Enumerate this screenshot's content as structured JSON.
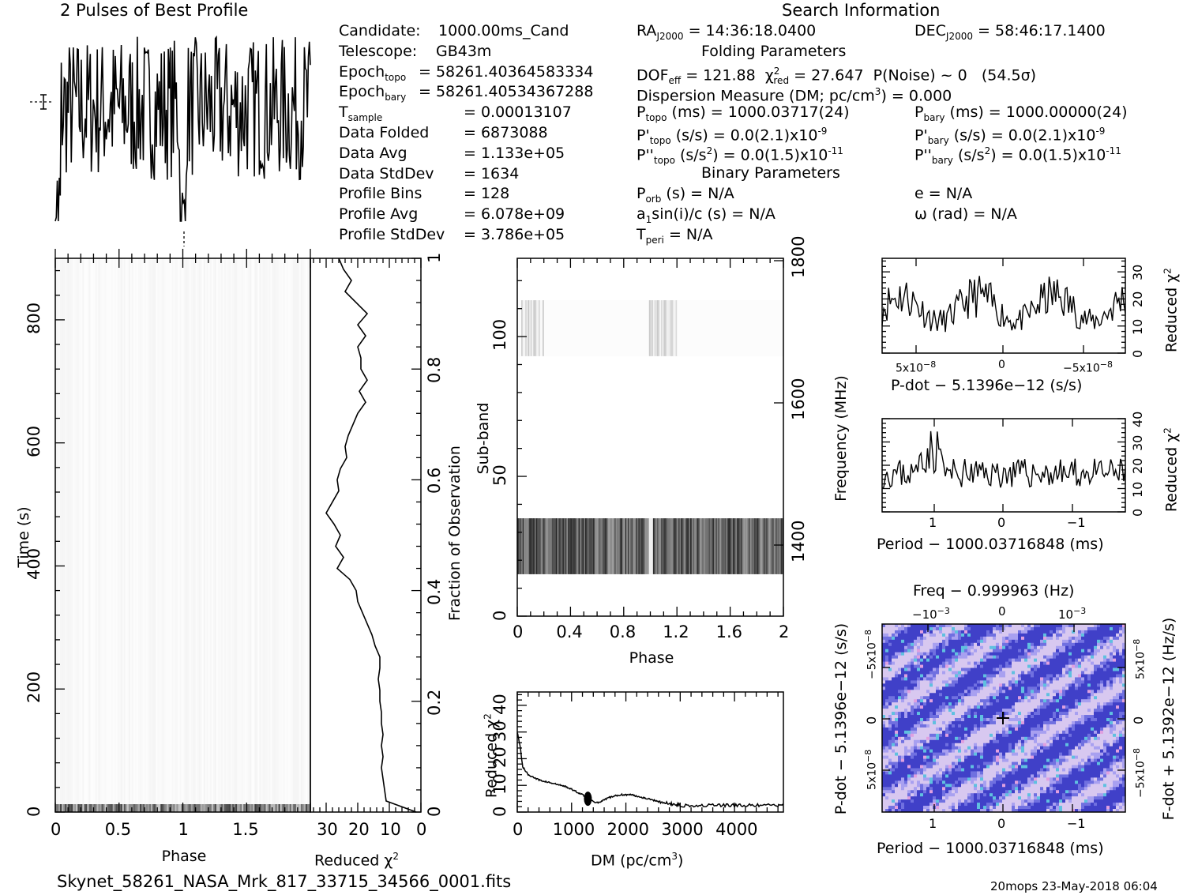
{
  "header": {
    "profile_title": "2 Pulses of Best Profile",
    "search_title": "Search Information",
    "folding_title": "Folding Parameters",
    "binary_title": "Binary Parameters"
  },
  "info_left": [
    {
      "label": "Candidate:",
      "value": "1000.00ms_Cand"
    },
    {
      "label": "Telescope:",
      "value": "GB43m"
    },
    {
      "label": "Epoch",
      "sub": "topo",
      "value": "= 58261.40364583334"
    },
    {
      "label": "Epoch",
      "sub": "bary",
      "value": "= 58261.40534367288"
    },
    {
      "label": "T",
      "sub": "sample",
      "value": "=   0.00013107"
    },
    {
      "label": "Data Folded",
      "value": "=   6873088"
    },
    {
      "label": "Data Avg",
      "value": "=   1.133e+05"
    },
    {
      "label": "Data StdDev",
      "value": "=   1634"
    },
    {
      "label": "Profile Bins",
      "value": "=   128"
    },
    {
      "label": "Profile Avg",
      "value": "=   6.078e+09"
    },
    {
      "label": "Profile StdDev",
      "value": "=   3.786e+05"
    }
  ],
  "info_right": {
    "ra": "RAⱼ2000 = 14:36:18.0400",
    "ra_label": "RA",
    "ra_sub": "J2000",
    "ra_value": "= 14:36:18.0400",
    "dec_label": "DEC",
    "dec_sub": "J2000",
    "dec_value": "= 58:46:17.1400",
    "dof_label": "DOF",
    "dof_sub": "eff",
    "dof_value": "= 121.88",
    "chi_label": "χ",
    "chi_sup": "2",
    "chi_sub": "red",
    "chi_value": "= 27.647",
    "pnoise": "P(Noise) ~ 0",
    "sigma": "(54.5σ)",
    "dm_label": "Dispersion Measure (DM; pc/cm",
    "dm_sup": "3",
    "dm_value": ") = 0.000",
    "ptopo_label": "P",
    "ptopo_sub": "topo",
    "ptopo_value": "(ms) =  1000.03717(24)",
    "pbary_label": "P",
    "pbary_sub": "bary",
    "pbary_value": "(ms) =  1000.00000(24)",
    "pdtopo_label": "P'",
    "pdtopo_sub": "topo",
    "pdtopo_value": "(s/s) = 0.0(2.1)x10",
    "pdtopo_exp": "-9",
    "pdbary_label": "P'",
    "pdbary_sub": "bary",
    "pdbary_value": "(s/s) = 0.0(2.1)x10",
    "pdbary_exp": "-9",
    "pddtopo_label": "P''",
    "pddtopo_sub": "topo",
    "pddtopo_value1": "(s/s",
    "pddtopo_sup": "2",
    "pddtopo_value2": ") = 0.0(1.5)x10",
    "pddtopo_exp": "-11",
    "pddbary_label": "P''",
    "pddbary_sub": "bary",
    "pddbary_value1": "(s/s",
    "pddbary_sup": "2",
    "pddbary_value2": ") = 0.0(1.5)x10",
    "pddbary_exp": "-11",
    "porb_label": "P",
    "porb_sub": "orb",
    "porb_value": "(s) = N/A",
    "a1_label": "a",
    "a1_sub": "1",
    "a1_value": "sin(i)/c (s) = N/A",
    "tperi_label": "T",
    "tperi_sub": "peri",
    "tperi_value": "= N/A",
    "e_value": "e = N/A",
    "omega_value": "ω (rad) = N/A"
  },
  "footer": {
    "filename": "Skynet_58261_NASA_Mrk_817_33715_34566_0001.fits",
    "stamp": "20mops 23-May-2018 06:04"
  },
  "chart_data": [
    {
      "type": "line",
      "name": "profile",
      "title": "2 Pulses of Best Profile",
      "xlim": [
        0,
        2
      ],
      "seed": 7,
      "n_points": 256,
      "note_shape": "noisy pulse profile with dip at phase 1.0"
    },
    {
      "type": "heatmap",
      "name": "time-phase",
      "xlabel": "Phase",
      "ylabel": "Time (s)",
      "xlim": [
        0,
        2
      ],
      "ylim": [
        0,
        900
      ],
      "xticks": [
        "0",
        "0.5",
        "1",
        "1.5"
      ],
      "yticks": [
        "0",
        "200",
        "400",
        "600",
        "800"
      ]
    },
    {
      "type": "line",
      "name": "time-chi2",
      "xlabel": "Reduced χ",
      "xlabel_sup": "2",
      "ylabel": "Fraction of Observation",
      "xlim": [
        35,
        0
      ],
      "ylim": [
        0,
        1
      ],
      "xticks": [
        "30",
        "20",
        "10",
        "0"
      ],
      "yticks": [
        "0",
        "0.2",
        "0.4",
        "0.6",
        "0.8",
        "1"
      ],
      "fraction": [
        1.0,
        0.98,
        0.96,
        0.94,
        0.92,
        0.9,
        0.88,
        0.86,
        0.84,
        0.82,
        0.8,
        0.78,
        0.76,
        0.74,
        0.72,
        0.7,
        0.68,
        0.66,
        0.64,
        0.62,
        0.6,
        0.58,
        0.56,
        0.54,
        0.52,
        0.5,
        0.48,
        0.46,
        0.44,
        0.42,
        0.4,
        0.38,
        0.36,
        0.34,
        0.32,
        0.3,
        0.28,
        0.26,
        0.24,
        0.22,
        0.2,
        0.18,
        0.16,
        0.14,
        0.12,
        0.1,
        0.08,
        0.06,
        0.04,
        0.02,
        0.0
      ],
      "chi2": [
        26.0,
        24.5,
        22.0,
        24.0,
        20.5,
        17.0,
        20.0,
        17.5,
        20.0,
        19.0,
        19.0,
        17.0,
        19.5,
        17.5,
        20.0,
        21.5,
        23.0,
        24.0,
        23.5,
        25.5,
        26.5,
        26.0,
        28.0,
        30.0,
        27.5,
        25.5,
        27.0,
        24.5,
        26.5,
        22.5,
        20.5,
        20.0,
        18.5,
        17.0,
        15.5,
        14.5,
        13.0,
        13.0,
        13.5,
        13.0,
        13.0,
        12.5,
        12.5,
        12.0,
        12.5,
        12.0,
        12.5,
        12.0,
        11.5,
        11.0,
        1.5
      ]
    },
    {
      "type": "heatmap",
      "name": "subband-phase",
      "xlabel": "Phase",
      "ylabel": "Sub-band",
      "ylabel2": "Frequency (MHz)",
      "xlim": [
        0,
        2
      ],
      "ylim": [
        0,
        128
      ],
      "xticks": [
        "0",
        "0.4",
        "0.8",
        "1.2",
        "1.6",
        "2"
      ],
      "yticks": [
        "0",
        "50",
        "100"
      ],
      "y2ticks": [
        "1400",
        "1600",
        "1800"
      ],
      "dark_band": [
        15,
        35
      ],
      "faint_band": [
        93,
        113
      ]
    },
    {
      "type": "line",
      "name": "dm-chi2",
      "xlabel": "DM (pc/cm",
      "xlabel_sup": "3",
      "xlabel_end": ")",
      "ylabel": "Reduced χ",
      "ylabel_sup": "2",
      "xlim": [
        0,
        4900
      ],
      "ylim": [
        0,
        45
      ],
      "xticks": [
        "0",
        "1000",
        "2000",
        "3000",
        "4000"
      ],
      "yticks": [
        "0",
        "10",
        "20",
        "30",
        "40"
      ],
      "dm": [
        0,
        50,
        100,
        200,
        300,
        400,
        500,
        600,
        700,
        800,
        900,
        1000,
        1100,
        1200,
        1300,
        1400,
        1500,
        1600,
        1700,
        1800,
        1900,
        2000,
        2100,
        2200,
        2300,
        2400,
        2500,
        2600,
        2700,
        2800,
        2900,
        3000,
        3200,
        3400,
        3600,
        3800,
        4000,
        4200,
        4400,
        4600,
        4800,
        4900
      ],
      "chi2": [
        30,
        25,
        17,
        14,
        13,
        12,
        11.5,
        11,
        10.5,
        10,
        9.5,
        8.5,
        7.5,
        6.5,
        5.5,
        4,
        3.5,
        4.5,
        5.5,
        6,
        6.5,
        6.5,
        6.5,
        6,
        5.5,
        5,
        4.5,
        4,
        3.5,
        3,
        3,
        2.5,
        2.5,
        2.5,
        2.5,
        2.5,
        2.5,
        2.5,
        2.5,
        2.5,
        2.5,
        2.5
      ]
    },
    {
      "type": "line",
      "name": "pdot-chi2",
      "xlabel": "P-dot − 5.1396e−12 (s/s)",
      "ylabel": "Reduced χ",
      "ylabel_sup": "2",
      "ylim": [
        0,
        35
      ],
      "xticks": [
        "5x10",
        "0",
        "−5x10"
      ],
      "xtick_exp": "−8",
      "yticks": [
        "0",
        "10",
        "20",
        "30"
      ],
      "seed": 11
    },
    {
      "type": "line",
      "name": "period-chi2",
      "xlabel": "Period − 1000.03716848 (ms)",
      "ylabel": "Reduced χ",
      "ylabel_sup": "2",
      "ylim": [
        0,
        40
      ],
      "xticks": [
        "1",
        "0",
        "−1"
      ],
      "yticks": [
        "0",
        "10",
        "20",
        "30",
        "40"
      ],
      "seed": 23
    },
    {
      "type": "heatmap",
      "name": "p-pdot",
      "top_label": "Freq − 0.999963 (Hz)",
      "top_ticks": [
        "−10",
        "0",
        "10"
      ],
      "top_tick_exp": "−3",
      "xlabel": "Period − 1000.03716848 (ms)",
      "xticks": [
        "1",
        "0",
        "−1"
      ],
      "ylabel": "P-dot − 5.1396e−12 (s/s)",
      "yticks": [
        "−5x10",
        "0",
        "5x10"
      ],
      "ytick_exp": "−8",
      "ylabel2": "F-dot + 5.1392e−12 (Hz/s)",
      "y2ticks": [
        "5x10",
        "0",
        "−5x10"
      ],
      "y2tick_exp": "−8",
      "colors": [
        "#d8c8f0",
        "#a8a0f0",
        "#7070e0",
        "#4040c8",
        "#60c0e0",
        "#e0a0e0"
      ]
    }
  ]
}
